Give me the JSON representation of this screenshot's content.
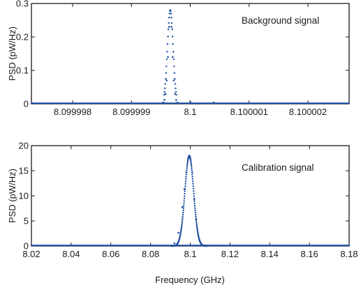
{
  "figure": {
    "xlabel": "Frequency (GHz)"
  },
  "colors": {
    "series": "#1f4fa0",
    "axis": "#1a1a1a"
  },
  "chart_data": [
    {
      "type": "scatter",
      "annotation": "Background signal",
      "ylabel": "PSD (pW/Hz)",
      "xlabel": "",
      "xlim": [
        8.0999973,
        8.1000027
      ],
      "ylim": [
        0,
        0.3
      ],
      "xticks": [
        8.099998,
        8.099999,
        8.1,
        8.100001,
        8.100002
      ],
      "xticklabels": [
        "8.099998",
        "8.099999",
        "8.1",
        "8.100001",
        "8.100002"
      ],
      "yticks": [
        0,
        0.1,
        0.2,
        0.3
      ],
      "yticklabels": [
        "0",
        "0.1",
        "0.2",
        "0.3"
      ],
      "grid": false,
      "peak_center": 8.09999966,
      "peak_height": 0.28,
      "series": [
        {
          "x": [
            8.09999954,
            8.09999956,
            8.09999958,
            8.0999996,
            8.09999962,
            8.09999964,
            8.09999966,
            8.09999968,
            8.0999997,
            8.09999972,
            8.09999974,
            8.09999976,
            8.09999978
          ],
          "values": [
            0.004,
            0.012,
            0.03,
            0.07,
            0.14,
            0.23,
            0.28,
            0.23,
            0.14,
            0.07,
            0.03,
            0.012,
            0.004
          ]
        },
        {
          "x": [
            8.1,
            8.1000004
          ],
          "values": [
            0.006,
            0.004
          ]
        }
      ]
    },
    {
      "type": "scatter",
      "annotation": "Calibration signal",
      "ylabel": "PSD (pW/Hz)",
      "xlabel": "Frequency (GHz)",
      "xlim": [
        8.02,
        8.18
      ],
      "ylim": [
        0,
        20
      ],
      "xticks": [
        8.02,
        8.04,
        8.06,
        8.08,
        8.1,
        8.12,
        8.14,
        8.16,
        8.18
      ],
      "xticklabels": [
        "8.02",
        "8.04",
        "8.06",
        "8.08",
        "8.1",
        "8.12",
        "8.14",
        "8.16",
        "8.18"
      ],
      "yticks": [
        0,
        5,
        10,
        15,
        20
      ],
      "yticklabels": [
        "0",
        "5",
        "10",
        "15",
        "20"
      ],
      "grid": false,
      "peak_center": 8.0995,
      "peak_height": 18.0,
      "peak_sigma": 0.0022,
      "series": [
        {
          "x": [
            8.092,
            8.094,
            8.096,
            8.097,
            8.098,
            8.099,
            8.0995,
            8.1,
            8.101,
            8.102,
            8.103,
            8.105,
            8.107
          ],
          "values": [
            0.54,
            2.63,
            7.76,
            11.3,
            14.7,
            17.5,
            18.0,
            17.5,
            14.7,
            9.3,
            5.3,
            0.8,
            0.05
          ]
        }
      ]
    }
  ]
}
